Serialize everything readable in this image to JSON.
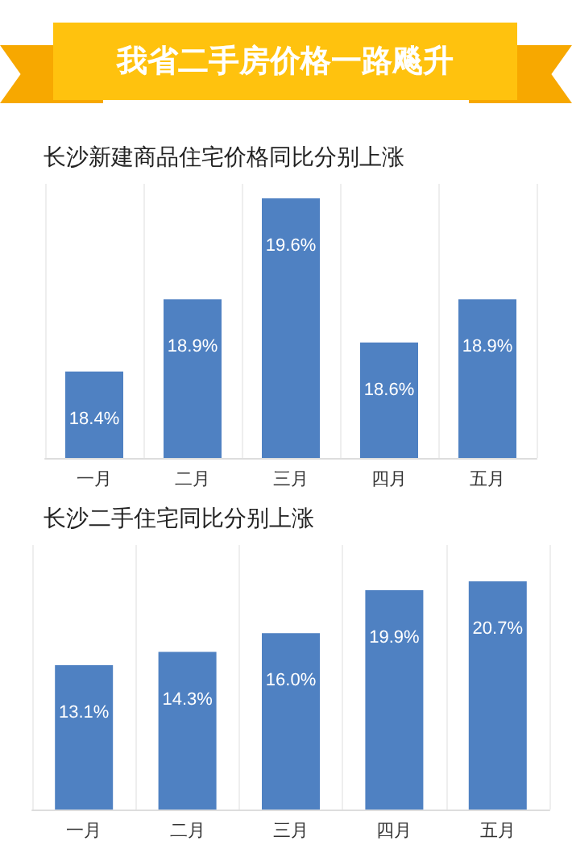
{
  "chart_data": [
    {
      "type": "bar",
      "title": "我省二手房价格一路飚升",
      "subtitle": "长沙新建商品住宅价格同比分别上涨",
      "categories": [
        "一月",
        "二月",
        "三月",
        "四月",
        "五月"
      ],
      "series": [
        {
          "color": "#4f81c2",
          "values": [
            18.4,
            18.9,
            19.6,
            18.6,
            18.9
          ],
          "value_labels": [
            "18.4%",
            "18.9%",
            "19.6%",
            "18.6%",
            "18.9%"
          ]
        }
      ],
      "ylim": [
        17.8,
        19.7
      ],
      "grid": "x",
      "tick_labels": "x"
    },
    {
      "type": "bar",
      "title": "长沙二手住宅同比分别上涨",
      "categories": [
        "一月",
        "二月",
        "三月",
        "四月",
        "五月"
      ],
      "series": [
        {
          "color": "#4f81c2",
          "values": [
            13.1,
            14.3,
            16.0,
            19.9,
            20.7
          ],
          "value_labels": [
            "13.1%",
            "14.3%",
            "16.0%",
            "19.9%",
            "20.7%"
          ]
        }
      ],
      "ylim": [
        0,
        24
      ],
      "grid": "x",
      "tick_labels": "x"
    }
  ]
}
